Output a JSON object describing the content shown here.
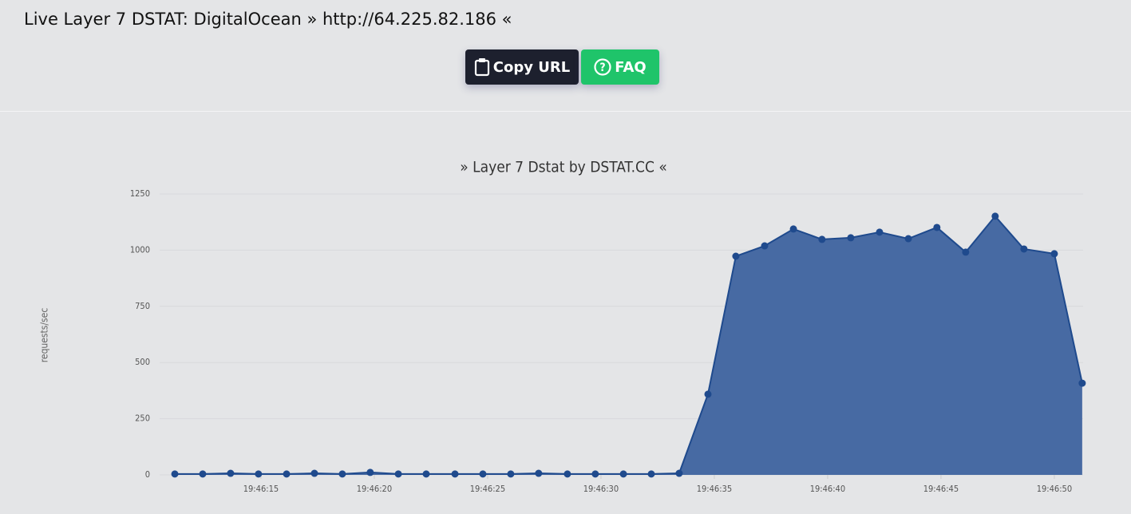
{
  "header": {
    "title": "Live Layer 7 DSTAT: DigitalOcean » http://64.225.82.186 «"
  },
  "buttons": [
    {
      "label": "Copy URL"
    },
    {
      "label": "FAQ"
    }
  ],
  "chart_data": {
    "type": "area",
    "title": "» Layer 7 Dstat by DSTAT.CC «",
    "y_label": "requests/sec",
    "x": [
      11.2,
      12.43,
      13.66,
      14.89,
      16.13,
      17.36,
      18.59,
      19.82,
      21.06,
      22.29,
      23.56,
      24.79,
      26.02,
      27.25,
      28.52,
      29.75,
      30.99,
      32.22,
      33.45,
      34.72,
      35.95,
      37.22,
      38.49,
      39.75,
      41.02,
      42.29,
      43.56,
      44.82,
      46.09,
      47.39,
      48.66,
      50.0,
      51.23
    ],
    "values": [
      4,
      4,
      7,
      4,
      4,
      7,
      4,
      11,
      4,
      4,
      4,
      4,
      4,
      7,
      4,
      4,
      4,
      4,
      7,
      359,
      973,
      1019,
      1094,
      1048,
      1055,
      1080,
      1051,
      1101,
      991,
      1151,
      1005,
      984,
      408
    ],
    "xlim": [
      10.53,
      51.27
    ],
    "xticks": [
      {
        "value": 15,
        "label": "19:46:15"
      },
      {
        "value": 20,
        "label": "19:46:20"
      },
      {
        "value": 25,
        "label": "19:46:25"
      },
      {
        "value": 30,
        "label": "19:46:30"
      },
      {
        "value": 35,
        "label": "19:46:35"
      },
      {
        "value": 40,
        "label": "19:46:40"
      },
      {
        "value": 45,
        "label": "19:46:45"
      },
      {
        "value": 50,
        "label": "19:46:50"
      }
    ],
    "ylim": [
      0,
      1250
    ],
    "yticks": [
      0,
      250,
      500,
      750,
      1000,
      1250
    ],
    "color": "#476aa3",
    "line_color": "#1f4a8d",
    "grid": true
  }
}
